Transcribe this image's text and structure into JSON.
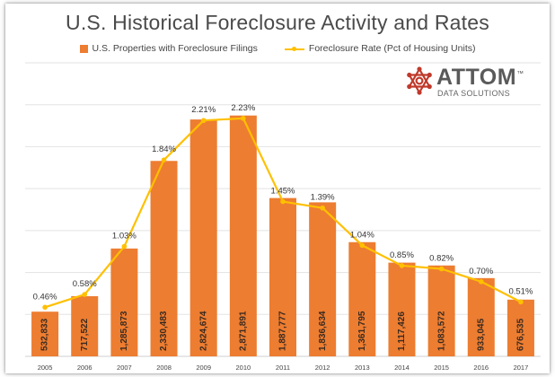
{
  "chart_data": {
    "type": "bar",
    "title": "U.S. Historical Foreclosure Activity and Rates",
    "categories": [
      "2005",
      "2006",
      "2007",
      "2008",
      "2009",
      "2010",
      "2011",
      "2012",
      "2013",
      "2014",
      "2015",
      "2016",
      "2017"
    ],
    "series": [
      {
        "name": "U.S. Properties with Foreclosure Filings",
        "type": "bar",
        "color": "#ed7d31",
        "values": [
          532833,
          717522,
          1285873,
          2330483,
          2824674,
          2871891,
          1887777,
          1836634,
          1361795,
          1117426,
          1083572,
          933045,
          676535
        ],
        "labels": [
          "532,833",
          "717,522",
          "1,285,873",
          "2,330,483",
          "2,824,674",
          "2,871,891",
          "1,887,777",
          "1,836,634",
          "1,361,795",
          "1,117,426",
          "1,083,572",
          "933,045",
          "676,535"
        ]
      },
      {
        "name": "Foreclosure Rate (Pct of Housing Units)",
        "type": "line",
        "color": "#ffc000",
        "values": [
          0.46,
          0.58,
          1.03,
          1.84,
          2.21,
          2.23,
          1.45,
          1.39,
          1.04,
          0.85,
          0.82,
          0.7,
          0.51
        ],
        "labels": [
          "0.46%",
          "0.58%",
          "1.03%",
          "1.84%",
          "2.21%",
          "2.23%",
          "1.45%",
          "1.39%",
          "1.04%",
          "0.85%",
          "0.82%",
          "0.70%",
          "0.51%"
        ]
      }
    ],
    "ylim_bars": [
      0,
      3500000
    ],
    "ylim_rate": [
      0,
      2.75
    ],
    "grid": true,
    "legend_position": "top"
  },
  "logo": {
    "name": "ATTOM",
    "trademark": "™",
    "subtitle": "DATA SOLUTIONS",
    "color": "#c0392b"
  }
}
